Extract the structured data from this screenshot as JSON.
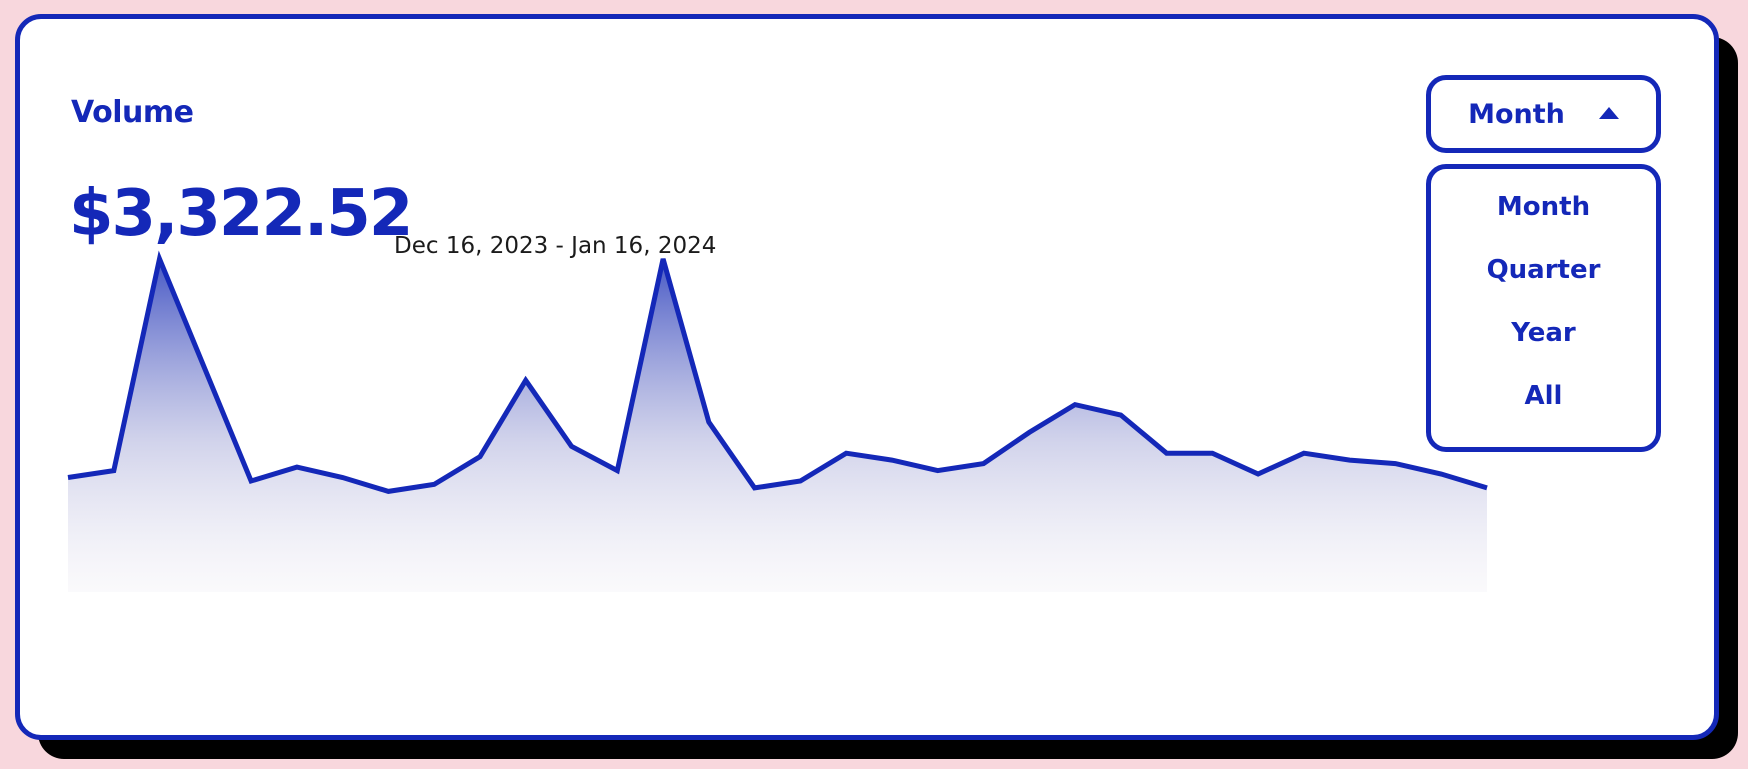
{
  "card": {
    "title": "Volume",
    "amount": "$3,322.52",
    "date_range": "Dec 16, 2023 - Jan 16, 2024"
  },
  "period_dropdown": {
    "selected": "Month",
    "options": [
      "Month",
      "Quarter",
      "Year",
      "All"
    ]
  },
  "colors": {
    "accent": "#1428b8",
    "background": "#f8d7dd",
    "card": "#ffffff",
    "shadow": "#000000"
  },
  "chart_data": {
    "type": "area",
    "y_range": [
      0,
      100
    ],
    "values": [
      33,
      35,
      96,
      64,
      32,
      36,
      33,
      29,
      31,
      39,
      61,
      42,
      35,
      96,
      49,
      30,
      32,
      40,
      38,
      35,
      37,
      46,
      54,
      51,
      40,
      40,
      34,
      40,
      38,
      37,
      34,
      30
    ],
    "grid": false,
    "legend": false
  }
}
